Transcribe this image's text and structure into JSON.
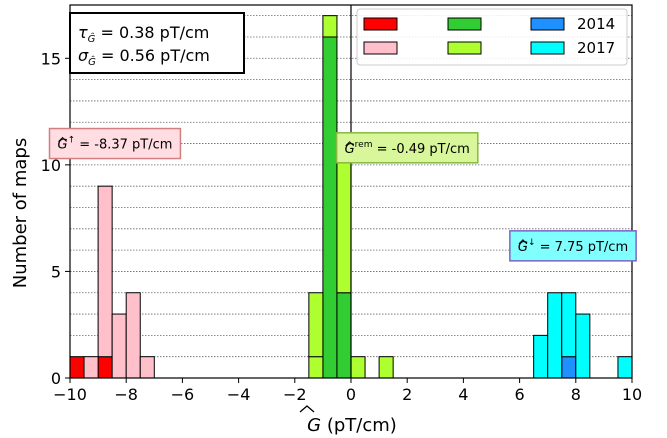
{
  "chart_data": {
    "type": "bar",
    "xlabel_prefix": "G",
    "xlabel_suffix": " (pT/cm)",
    "ylabel": "Number of maps",
    "xlim": [
      -10,
      10
    ],
    "ylim": [
      0,
      17.5
    ],
    "xticks": [
      -10,
      -8,
      -6,
      -4,
      -2,
      0,
      2,
      4,
      6,
      8,
      10
    ],
    "xtick_labels": [
      "−10",
      "−8",
      "−6",
      "−4",
      "−2",
      "0",
      "2",
      "4",
      "6",
      "8",
      "10"
    ],
    "yticks": [
      0,
      5,
      10,
      15
    ],
    "ytick_labels": [
      "0",
      "5",
      "10",
      "15"
    ],
    "bin_width": 0.5,
    "grid": "horizontal dotted",
    "vline_x": 0,
    "stats": {
      "tau_label": "τ",
      "tau_value": " = 0.38 pT/cm",
      "sigma_label": "σ",
      "sigma_value": " = 0.56 pT/cm"
    },
    "series": [
      {
        "name": "",
        "color": "#ff0000",
        "bins": [
          [
            -10,
            1
          ],
          [
            -9,
            1
          ]
        ]
      },
      {
        "name": "",
        "color": "#ffc0cb",
        "bins": [
          [
            -9.5,
            1
          ],
          [
            -9,
            8
          ],
          [
            -8.5,
            3
          ],
          [
            -8,
            4
          ],
          [
            -7.5,
            1
          ]
        ]
      },
      {
        "name": "",
        "color": "#32cd32",
        "bins": [
          [
            -1,
            16
          ],
          [
            -0.5,
            4
          ]
        ]
      },
      {
        "name": "",
        "color": "#adff2f",
        "bins": [
          [
            -1.5,
            1
          ],
          [
            -1.5,
            3
          ],
          [
            -1,
            1
          ],
          [
            -0.5,
            7
          ],
          [
            0,
            1
          ],
          [
            1,
            1
          ]
        ]
      },
      {
        "name": "2014",
        "color": "#1e90ff",
        "bins": [
          [
            7.5,
            1
          ]
        ]
      },
      {
        "name": "2017",
        "color": "#00ffff",
        "bins": [
          [
            6.5,
            2
          ],
          [
            7,
            4
          ],
          [
            7.5,
            3
          ],
          [
            8,
            3
          ],
          [
            9.5,
            1
          ]
        ]
      }
    ],
    "annotations": [
      {
        "id": "up",
        "text_main": "G",
        "text_sup": "↑",
        "text_rest": " = -8.37 pT/cm",
        "x": -8.4,
        "y": 11.0,
        "bg": "#ffdde2",
        "border": "#d08080"
      },
      {
        "id": "rem",
        "text_main": "G",
        "text_sup": "rem",
        "text_rest": " = -0.49 pT/cm",
        "x": 2.0,
        "y": 10.8,
        "bg": "#d8f79a",
        "border": "#88b840"
      },
      {
        "id": "down",
        "text_main": "G",
        "text_sup": "↓",
        "text_rest": " = 7.75 pT/cm",
        "x": 7.9,
        "y": 6.2,
        "bg": "#80ffff",
        "border": "#7a64c8"
      }
    ]
  }
}
